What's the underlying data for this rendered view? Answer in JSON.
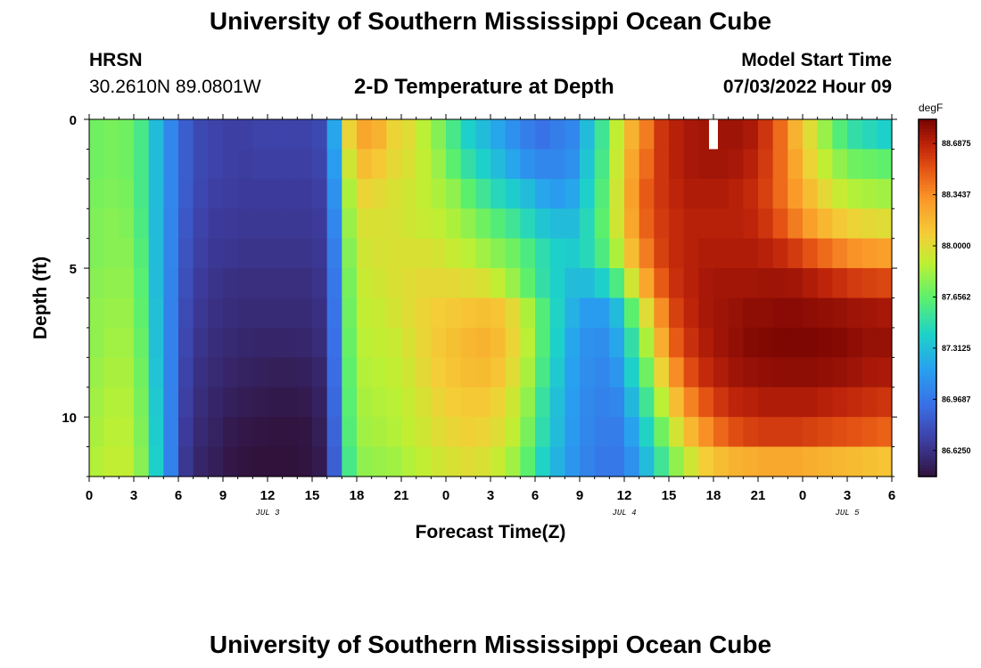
{
  "header": {
    "title": "University of Southern Mississippi Ocean Cube",
    "station": "HRSN",
    "coords": "30.2610N  89.0801W",
    "subtitle": "2-D Temperature at Depth",
    "model_start_label": "Model Start Time",
    "model_start_value": "07/03/2022 Hour 09"
  },
  "footer": {
    "title": "University of Southern Mississippi Ocean Cube"
  },
  "chart_data": {
    "type": "heatmap",
    "xlabel": "Forecast Time(Z)",
    "ylabel": "Depth (ft)",
    "x_hours_range": [
      0,
      54
    ],
    "y_range_ft": [
      0,
      12
    ],
    "x_tick_labels": [
      "0",
      "3",
      "6",
      "9",
      "12",
      "15",
      "18",
      "21",
      "0",
      "3",
      "6",
      "9",
      "12",
      "15",
      "18",
      "21",
      "0",
      "3",
      "6"
    ],
    "y_tick_labels": [
      "0",
      "5",
      "10"
    ],
    "date_labels": [
      {
        "hour": 12,
        "text": "JUL 3"
      },
      {
        "hour": 36,
        "text": "JUL 4"
      },
      {
        "hour": 51,
        "text": "JUL 5"
      }
    ],
    "colorbar": {
      "unit": "degF",
      "min": 86.45,
      "max": 88.85,
      "tick_labels": [
        "88.6875",
        "88.3437",
        "88.0000",
        "87.6562",
        "87.3125",
        "86.9687",
        "86.6250"
      ]
    },
    "hours": [
      0,
      1,
      2,
      3,
      4,
      5,
      6,
      7,
      8,
      9,
      10,
      11,
      12,
      13,
      14,
      15,
      16,
      17,
      18,
      19,
      20,
      21,
      22,
      23,
      24,
      25,
      26,
      27,
      28,
      29,
      30,
      31,
      32,
      33,
      34,
      35,
      36,
      37,
      38,
      39,
      40,
      41,
      42,
      43,
      44,
      45,
      46,
      47,
      48,
      49,
      50,
      51,
      52,
      53,
      54
    ],
    "depth_layers_ft": [
      0.5,
      1.5,
      2.5,
      3.5,
      4.5,
      5.5,
      6.5,
      7.5,
      8.5,
      9.5,
      10.5,
      11.5
    ],
    "temperature_degF": [
      [
        87.7,
        87.72,
        87.7,
        87.58,
        87.3,
        87.05,
        86.85,
        86.75,
        86.72,
        86.7,
        86.7,
        86.72,
        86.72,
        86.72,
        86.72,
        86.75,
        87.2,
        88.05,
        88.25,
        88.2,
        88.05,
        88.0,
        87.88,
        87.75,
        87.58,
        87.4,
        87.3,
        87.2,
        87.1,
        87.0,
        86.95,
        87.0,
        87.05,
        87.3,
        87.55,
        87.9,
        88.2,
        88.4,
        88.62,
        88.7,
        88.74,
        88.75,
        88.76,
        88.76,
        88.73,
        88.62,
        88.45,
        88.2,
        88.0,
        87.8,
        87.62,
        87.5,
        87.45,
        87.4,
        87.4
      ],
      [
        87.7,
        87.72,
        87.7,
        87.58,
        87.3,
        87.05,
        86.85,
        86.75,
        86.72,
        86.7,
        86.69,
        86.7,
        86.7,
        86.7,
        86.7,
        86.73,
        87.15,
        87.95,
        88.15,
        88.1,
        88.02,
        87.98,
        87.9,
        87.8,
        87.65,
        87.5,
        87.4,
        87.3,
        87.2,
        87.1,
        87.05,
        87.05,
        87.1,
        87.35,
        87.58,
        87.92,
        88.25,
        88.45,
        88.62,
        88.7,
        88.74,
        88.75,
        88.75,
        88.74,
        88.7,
        88.6,
        88.45,
        88.25,
        88.05,
        87.9,
        87.78,
        87.7,
        87.68,
        87.66,
        87.66
      ],
      [
        87.72,
        87.74,
        87.72,
        87.58,
        87.3,
        87.05,
        86.84,
        86.74,
        86.7,
        86.69,
        86.68,
        86.68,
        86.68,
        86.68,
        86.68,
        86.7,
        87.1,
        87.85,
        88.05,
        88.02,
        87.98,
        87.95,
        87.9,
        87.85,
        87.78,
        87.65,
        87.55,
        87.45,
        87.38,
        87.3,
        87.2,
        87.15,
        87.2,
        87.4,
        87.62,
        87.95,
        88.28,
        88.5,
        88.62,
        88.68,
        88.72,
        88.72,
        88.72,
        88.7,
        88.66,
        88.58,
        88.45,
        88.3,
        88.15,
        88.02,
        87.92,
        87.86,
        87.84,
        87.82,
        87.82
      ],
      [
        87.74,
        87.76,
        87.74,
        87.6,
        87.3,
        87.04,
        86.82,
        86.72,
        86.68,
        86.67,
        86.66,
        86.66,
        86.66,
        86.66,
        86.66,
        86.68,
        87.05,
        87.8,
        87.98,
        87.98,
        87.97,
        87.95,
        87.92,
        87.9,
        87.85,
        87.78,
        87.7,
        87.62,
        87.55,
        87.45,
        87.35,
        87.3,
        87.3,
        87.45,
        87.65,
        87.95,
        88.25,
        88.48,
        88.6,
        88.66,
        88.7,
        88.7,
        88.7,
        88.7,
        88.68,
        88.62,
        88.52,
        88.4,
        88.28,
        88.18,
        88.1,
        88.05,
        88.02,
        88.0,
        88.0
      ],
      [
        87.74,
        87.76,
        87.76,
        87.62,
        87.3,
        87.04,
        86.8,
        86.7,
        86.66,
        86.65,
        86.64,
        86.64,
        86.64,
        86.64,
        86.64,
        86.66,
        87.0,
        87.75,
        87.95,
        87.97,
        87.98,
        87.98,
        87.98,
        87.96,
        87.92,
        87.88,
        87.82,
        87.76,
        87.7,
        87.6,
        87.48,
        87.4,
        87.38,
        87.45,
        87.6,
        87.85,
        88.15,
        88.4,
        88.58,
        88.66,
        88.7,
        88.72,
        88.72,
        88.72,
        88.72,
        88.7,
        88.66,
        88.6,
        88.52,
        88.45,
        88.38,
        88.33,
        88.3,
        88.28,
        88.28
      ],
      [
        87.76,
        87.78,
        87.78,
        87.64,
        87.3,
        87.03,
        86.78,
        86.68,
        86.64,
        86.62,
        86.61,
        86.61,
        86.61,
        86.61,
        86.61,
        86.64,
        86.98,
        87.72,
        87.92,
        87.95,
        87.98,
        88.0,
        88.02,
        88.02,
        88.02,
        88.0,
        87.98,
        87.9,
        87.8,
        87.66,
        87.5,
        87.4,
        87.3,
        87.3,
        87.4,
        87.6,
        87.95,
        88.25,
        88.5,
        88.64,
        88.7,
        88.74,
        88.75,
        88.75,
        88.75,
        88.76,
        88.76,
        88.75,
        88.72,
        88.68,
        88.64,
        88.6,
        88.58,
        88.56,
        88.56
      ],
      [
        87.78,
        87.8,
        87.8,
        87.66,
        87.32,
        87.02,
        86.76,
        86.66,
        86.62,
        86.6,
        86.59,
        86.59,
        86.59,
        86.59,
        86.59,
        86.62,
        86.96,
        87.7,
        87.9,
        87.92,
        87.96,
        88.0,
        88.05,
        88.08,
        88.1,
        88.12,
        88.14,
        88.12,
        88.02,
        87.85,
        87.62,
        87.42,
        87.25,
        87.15,
        87.15,
        87.3,
        87.65,
        88.0,
        88.35,
        88.58,
        88.68,
        88.74,
        88.76,
        88.78,
        88.8,
        88.8,
        88.81,
        88.81,
        88.8,
        88.79,
        88.78,
        88.76,
        88.75,
        88.74,
        88.74
      ],
      [
        87.78,
        87.82,
        87.82,
        87.68,
        87.32,
        87.02,
        86.74,
        86.64,
        86.6,
        86.58,
        86.57,
        86.56,
        86.56,
        86.56,
        86.57,
        86.6,
        86.94,
        87.68,
        87.88,
        87.9,
        87.92,
        87.98,
        88.04,
        88.1,
        88.14,
        88.18,
        88.2,
        88.16,
        88.05,
        87.88,
        87.62,
        87.4,
        87.2,
        87.1,
        87.08,
        87.2,
        87.5,
        87.85,
        88.22,
        88.5,
        88.64,
        88.72,
        88.76,
        88.79,
        88.82,
        88.83,
        88.84,
        88.84,
        88.84,
        88.83,
        88.82,
        88.8,
        88.78,
        88.78,
        88.78
      ],
      [
        87.8,
        87.84,
        87.84,
        87.7,
        87.34,
        87.02,
        86.72,
        86.62,
        86.58,
        86.56,
        86.54,
        86.53,
        86.52,
        86.52,
        86.53,
        86.57,
        86.92,
        87.66,
        87.86,
        87.88,
        87.9,
        87.95,
        88.02,
        88.08,
        88.12,
        88.15,
        88.16,
        88.12,
        88.0,
        87.84,
        87.58,
        87.36,
        87.18,
        87.08,
        87.05,
        87.12,
        87.4,
        87.7,
        88.05,
        88.35,
        88.55,
        88.66,
        88.72,
        88.76,
        88.78,
        88.79,
        88.8,
        88.8,
        88.8,
        88.79,
        88.78,
        88.76,
        88.74,
        88.73,
        88.73
      ],
      [
        87.82,
        87.86,
        87.86,
        87.72,
        87.36,
        87.02,
        86.7,
        86.6,
        86.56,
        86.53,
        86.51,
        86.5,
        86.49,
        86.49,
        86.5,
        86.54,
        86.9,
        87.64,
        87.84,
        87.86,
        87.88,
        87.92,
        87.98,
        88.04,
        88.08,
        88.1,
        88.1,
        88.05,
        87.94,
        87.78,
        87.52,
        87.32,
        87.16,
        87.06,
        87.02,
        87.05,
        87.28,
        87.55,
        87.88,
        88.15,
        88.38,
        88.52,
        88.62,
        88.68,
        88.7,
        88.72,
        88.72,
        88.72,
        88.72,
        88.7,
        88.68,
        88.66,
        88.64,
        88.62,
        88.62
      ],
      [
        87.84,
        87.88,
        87.88,
        87.74,
        87.38,
        87.02,
        86.68,
        86.58,
        86.54,
        86.5,
        86.48,
        86.47,
        86.46,
        86.46,
        86.47,
        86.52,
        86.88,
        87.62,
        87.82,
        87.84,
        87.86,
        87.9,
        87.95,
        88.0,
        88.04,
        88.06,
        88.05,
        88.0,
        87.9,
        87.72,
        87.48,
        87.3,
        87.14,
        87.05,
        87.0,
        87.0,
        87.18,
        87.42,
        87.7,
        87.96,
        88.18,
        88.34,
        88.46,
        88.54,
        88.58,
        88.6,
        88.6,
        88.6,
        88.58,
        88.56,
        88.54,
        88.52,
        88.5,
        88.48,
        88.48
      ],
      [
        87.86,
        87.9,
        87.9,
        87.76,
        87.4,
        87.02,
        86.66,
        86.56,
        86.52,
        86.48,
        86.46,
        86.45,
        86.45,
        86.45,
        86.46,
        86.5,
        86.86,
        87.58,
        87.78,
        87.8,
        87.82,
        87.86,
        87.9,
        87.95,
        87.98,
        88.0,
        87.98,
        87.92,
        87.82,
        87.65,
        87.42,
        87.26,
        87.12,
        87.03,
        86.98,
        86.98,
        87.1,
        87.3,
        87.55,
        87.78,
        87.95,
        88.08,
        88.15,
        88.2,
        88.22,
        88.24,
        88.24,
        88.24,
        88.22,
        88.2,
        88.18,
        88.16,
        88.14,
        88.12,
        88.12
      ]
    ],
    "missing_cell": {
      "hour": 42,
      "layer": 0
    }
  }
}
